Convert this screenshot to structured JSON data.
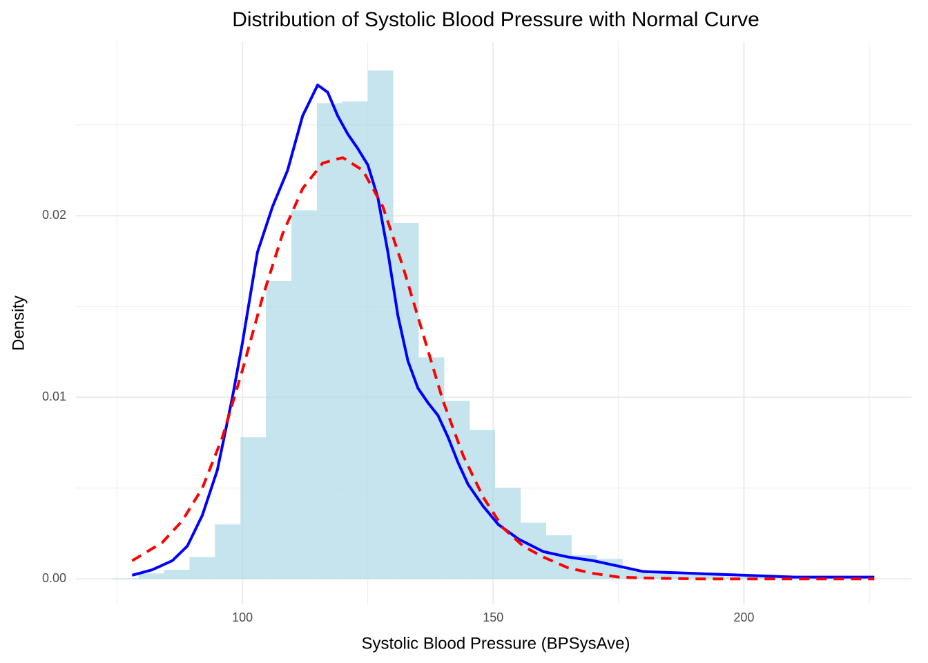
{
  "chart_data": {
    "type": "histogram",
    "title": "Distribution of Systolic Blood Pressure with Normal Curve",
    "x_label": "Systolic Blood Pressure (BPSysAve)",
    "y_label": "Density",
    "bins": [
      74.2,
      79.28,
      84.36,
      89.44,
      94.52,
      99.6,
      104.68,
      109.76,
      114.84,
      119.92,
      125,
      130.08,
      135.16,
      140.24,
      145.32,
      150.4,
      155.48,
      160.56,
      165.64,
      170.72,
      175.8,
      180.88,
      185.96,
      191.04,
      196.12,
      201.2,
      206.28,
      211.36,
      216.44,
      221.52,
      226.6
    ],
    "values": [
      3e-05,
      0.0003,
      0.0005,
      0.0012,
      0.003,
      0.0078,
      0.0164,
      0.0203,
      0.0262,
      0.0263,
      0.028,
      0.0196,
      0.0122,
      0.0098,
      0.0082,
      0.005,
      0.0031,
      0.0024,
      0.0013,
      0.0011,
      0.0005,
      0.0003,
      0.0002,
      0.0002,
      0.0001,
      0.0001,
      5e-05,
      5e-05,
      3e-05,
      3e-05
    ],
    "color": "#add8e6",
    "series": [
      {
        "color": "#0000ff",
        "dash": false,
        "x": [
          78,
          82,
          86,
          89,
          92,
          95,
          98,
          100,
          103,
          106,
          109,
          112,
          115,
          117,
          119,
          121,
          123,
          125,
          127,
          129,
          131,
          133,
          135,
          137,
          139,
          141,
          143,
          145,
          148,
          151,
          155,
          160,
          165,
          170,
          175,
          180,
          190,
          200,
          210,
          226
        ],
        "values": [
          0.0002,
          0.0005,
          0.001,
          0.0018,
          0.0035,
          0.006,
          0.01,
          0.013,
          0.018,
          0.0205,
          0.0225,
          0.0255,
          0.0272,
          0.0268,
          0.0255,
          0.0245,
          0.0237,
          0.0228,
          0.021,
          0.018,
          0.0145,
          0.012,
          0.0105,
          0.0097,
          0.009,
          0.0078,
          0.0064,
          0.0052,
          0.004,
          0.003,
          0.0022,
          0.0015,
          0.0012,
          0.001,
          0.0007,
          0.0004,
          0.0003,
          0.0002,
          0.0001,
          0.0001
        ]
      },
      {
        "color": "#ff0000",
        "dash": true,
        "x": [
          78,
          84,
          88,
          92,
          96,
          100,
          104,
          108,
          112,
          116,
          120,
          124,
          128,
          132,
          136,
          140,
          144,
          148,
          152,
          156,
          160,
          165,
          170,
          175,
          180,
          190,
          226
        ],
        "values": [
          0.001,
          0.002,
          0.0032,
          0.005,
          0.0078,
          0.0115,
          0.0155,
          0.019,
          0.0215,
          0.0229,
          0.0232,
          0.0225,
          0.0205,
          0.0172,
          0.0135,
          0.0098,
          0.0068,
          0.0045,
          0.0028,
          0.0018,
          0.0012,
          0.0006,
          0.0003,
          0.0001,
          5e-05,
          0,
          0
        ]
      }
    ],
    "xlim": [
      66.8,
      233.4
    ],
    "ylim": [
      -0.0014,
      0.0296
    ],
    "xticks": [
      100,
      150,
      200
    ],
    "yticks": [
      {
        "value": 0,
        "label": "0.00"
      },
      {
        "value": 0.01,
        "label": "0.01"
      },
      {
        "value": 0.02,
        "label": "0.02"
      }
    ],
    "xminor": [
      75,
      125,
      175,
      225
    ],
    "yminor": [
      0.005,
      0.015,
      0.025
    ],
    "grid": true
  }
}
